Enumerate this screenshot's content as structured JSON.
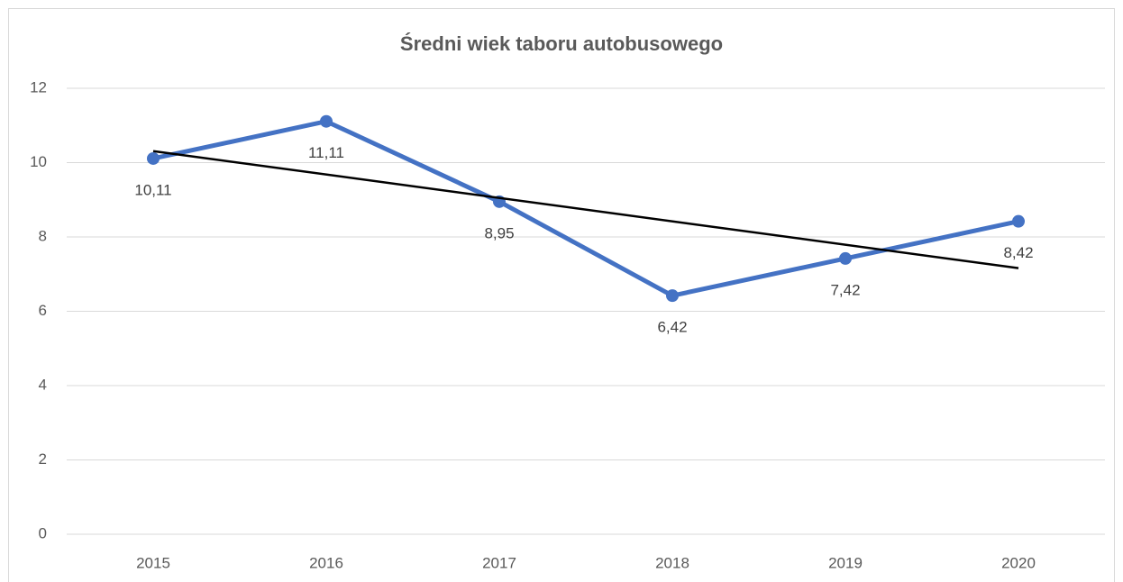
{
  "chart_data": {
    "type": "line",
    "title": "Średni wiek taboru autobusowego",
    "categories": [
      "2015",
      "2016",
      "2017",
      "2018",
      "2019",
      "2020"
    ],
    "series": [
      {
        "color": "#4472c4",
        "values": [
          10.11,
          11.11,
          8.95,
          6.42,
          7.42,
          8.42
        ],
        "value_labels": [
          "10,11",
          "11,11",
          "8,95",
          "6,42",
          "7,42",
          "8,42"
        ]
      }
    ],
    "trendline": {
      "color": "#000000",
      "values": [
        10.31,
        7.16
      ]
    },
    "ylim": [
      0,
      12
    ],
    "yticks": [
      0,
      2,
      4,
      6,
      8,
      10,
      12
    ],
    "grid": true
  }
}
